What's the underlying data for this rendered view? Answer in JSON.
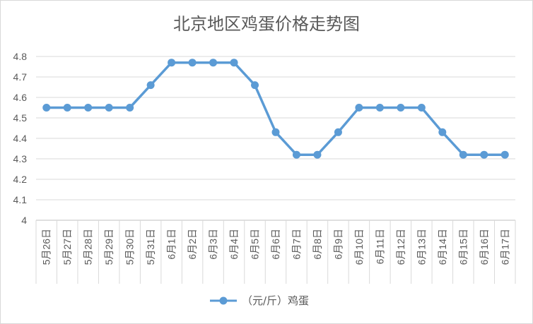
{
  "chart_data": {
    "type": "line",
    "title": "北京地区鸡蛋价格走势图",
    "xlabel": "",
    "ylabel": "",
    "categories": [
      "5月26日",
      "5月27日",
      "5月28日",
      "5月29日",
      "5月30日",
      "5月31日",
      "6月1日",
      "6月2日",
      "6月3日",
      "6月4日",
      "6月5日",
      "6月6日",
      "6月7日",
      "6月8日",
      "6月9日",
      "6月10日",
      "6月11日",
      "6月12日",
      "6月13日",
      "6月14日",
      "6月15日",
      "6月16日",
      "6月17日"
    ],
    "series": [
      {
        "name": "（元/斤）鸡蛋",
        "values": [
          4.55,
          4.55,
          4.55,
          4.55,
          4.55,
          4.66,
          4.77,
          4.77,
          4.77,
          4.77,
          4.66,
          4.43,
          4.32,
          4.32,
          4.43,
          4.55,
          4.55,
          4.55,
          4.55,
          4.43,
          4.32,
          4.32,
          4.32
        ],
        "color": "#5b9bd5"
      }
    ],
    "ylim": [
      4,
      4.8
    ],
    "yticks": [
      "4",
      "4.1",
      "4.2",
      "4.3",
      "4.4",
      "4.5",
      "4.6",
      "4.7",
      "4.8"
    ],
    "grid": true,
    "legend_position": "bottom"
  }
}
